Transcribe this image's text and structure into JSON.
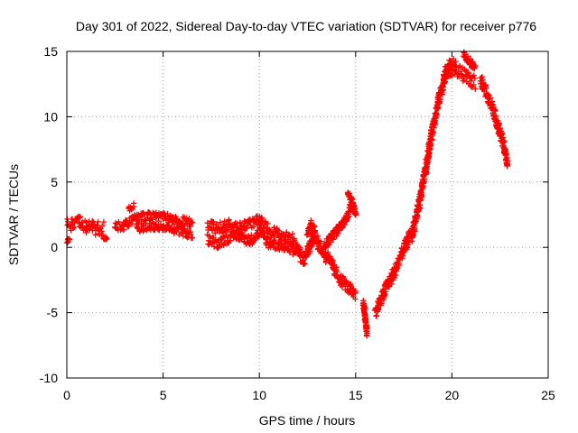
{
  "chart_data": {
    "type": "scatter",
    "title": "Day 301 of 2022, Sidereal Day-to-day VTEC variation (SDTVAR) for receiver p776",
    "xlabel": "GPS time / hours",
    "ylabel": "SDTVAR / TECUs",
    "xlim": [
      0,
      25
    ],
    "ylim": [
      -10,
      15
    ],
    "xticks": [
      0,
      5,
      10,
      15,
      20,
      25
    ],
    "yticks": [
      -10,
      -5,
      0,
      5,
      10,
      15
    ],
    "xtick_labels": [
      "0",
      "5",
      "10",
      "15",
      "20",
      "25"
    ],
    "ytick_labels": [
      "-10",
      "-5",
      "0",
      "5",
      "10",
      "15"
    ],
    "grid": true,
    "marker": "plus",
    "series": [
      {
        "name": "SDTVAR",
        "color": "#ff0000",
        "bands": [
          {
            "x": [
              0.0,
              0.5,
              1.0,
              1.5,
              1.9
            ],
            "y": [
              1.6,
              1.9,
              1.6,
              1.4,
              1.5
            ],
            "spread": 0.55
          },
          {
            "x": [
              0.0,
              0.15
            ],
            "y": [
              0.4,
              0.5
            ],
            "spread": 0.2
          },
          {
            "x": [
              1.9,
              2.1
            ],
            "y": [
              0.6,
              0.7
            ],
            "spread": 0.15
          },
          {
            "x": [
              2.5,
              3.0,
              3.5,
              4.0,
              4.5,
              5.0,
              5.5,
              6.0,
              6.5
            ],
            "y": [
              1.6,
              1.7,
              2.2,
              2.3,
              2.4,
              2.3,
              2.2,
              2.0,
              1.8
            ],
            "spread": 0.35
          },
          {
            "x": [
              3.2,
              3.5
            ],
            "y": [
              2.9,
              3.2
            ],
            "spread": 0.2
          },
          {
            "x": [
              3.6,
              4.5,
              5.2,
              6.0,
              6.5
            ],
            "y": [
              1.5,
              1.6,
              1.5,
              1.2,
              0.9
            ],
            "spread": 0.3
          },
          {
            "x": [
              7.3,
              8.0,
              8.5,
              9.0,
              9.5,
              10.0,
              10.5,
              11.0,
              11.5,
              11.9
            ],
            "y": [
              1.6,
              1.5,
              1.7,
              1.5,
              1.9,
              2.0,
              1.3,
              1.0,
              0.7,
              0.5
            ],
            "spread": 0.45
          },
          {
            "x": [
              7.3,
              7.8,
              8.5,
              9.0,
              9.5,
              10.0,
              10.5,
              11.0,
              11.5,
              12.0
            ],
            "y": [
              0.6,
              0.3,
              0.8,
              0.9,
              0.5,
              1.2,
              0.3,
              0.2,
              0.0,
              -0.3
            ],
            "spread": 0.4
          },
          {
            "x": [
              11.9,
              12.3,
              12.8,
              13.2,
              13.5
            ],
            "y": [
              0.0,
              -1.0,
              0.8,
              0.0,
              -0.8
            ],
            "spread": 0.5
          },
          {
            "x": [
              12.5,
              12.7,
              12.9
            ],
            "y": [
              1.2,
              1.8,
              1.2
            ],
            "spread": 0.3
          },
          {
            "x": [
              13.4,
              14.0,
              14.5,
              14.9
            ],
            "y": [
              0.2,
              1.2,
              2.2,
              3.5
            ],
            "spread": 0.35
          },
          {
            "x": [
              14.6,
              14.8,
              15.0
            ],
            "y": [
              4.2,
              3.6,
              2.5
            ],
            "spread": 0.2
          },
          {
            "x": [
              13.5,
              13.9,
              14.3,
              14.7,
              15.0
            ],
            "y": [
              -0.5,
              -1.8,
              -2.6,
              -3.2,
              -3.8
            ],
            "spread": 0.45
          },
          {
            "x": [
              15.4,
              15.5,
              15.6
            ],
            "y": [
              -4.2,
              -5.4,
              -6.6
            ],
            "spread": 0.2
          },
          {
            "x": [
              16.0,
              16.3,
              16.6,
              17.0,
              17.4,
              17.8
            ],
            "y": [
              -5.0,
              -4.1,
              -3.0,
              -2.0,
              -0.4,
              0.8
            ],
            "spread": 0.5
          },
          {
            "x": [
              17.9,
              18.3,
              18.7,
              19.0,
              19.3,
              19.6,
              19.9,
              20.2
            ],
            "y": [
              0.8,
              3.4,
              6.4,
              9.2,
              11.2,
              12.9,
              14.0,
              13.9
            ],
            "spread": 0.5
          },
          {
            "x": [
              19.6,
              20.0,
              20.4,
              20.8,
              21.2
            ],
            "y": [
              13.3,
              13.7,
              13.4,
              13.0,
              12.6
            ],
            "spread": 0.5
          },
          {
            "x": [
              20.6,
              20.9,
              21.2
            ],
            "y": [
              14.8,
              14.3,
              13.6
            ],
            "spread": 0.3
          },
          {
            "x": [
              21.5,
              21.8,
              22.1,
              22.4,
              22.7,
              22.9
            ],
            "y": [
              12.8,
              11.8,
              10.8,
              9.2,
              7.8,
              6.2
            ],
            "spread": 0.45
          }
        ]
      }
    ]
  }
}
